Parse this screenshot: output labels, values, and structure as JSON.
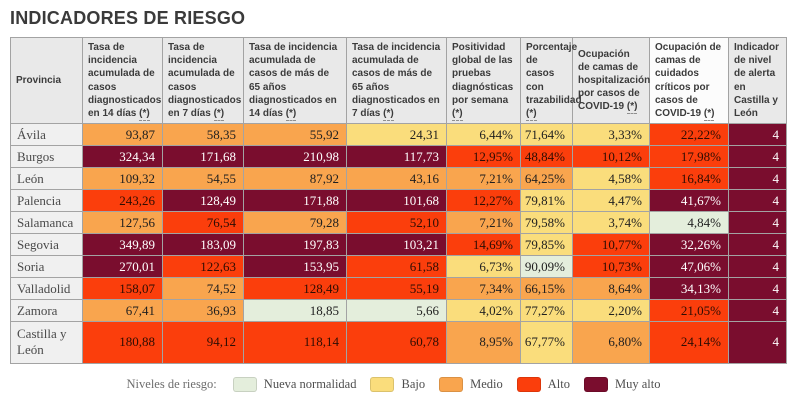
{
  "chart_data": {
    "type": "table",
    "title": "INDICADORES DE RIESGO",
    "province_header": "Provincia",
    "footnote_marker": "(*)",
    "legend_label": "Niveles de riesgo:",
    "columns": [
      {
        "label": "Tasa de incidencia acumulada de casos diagnosticados en 14 días",
        "asterisk": "(*)",
        "highlight": false
      },
      {
        "label": "Tasa de incidencia acumulada de casos diagnosticados en 7 días",
        "asterisk": "(*)",
        "highlight": false
      },
      {
        "label": "Tasa de incidencia acumulada de casos de más de 65 años diagnosticados en 14 días",
        "asterisk": "(*)",
        "highlight": false
      },
      {
        "label": "Tasa de incidencia acumulada de casos de más de 65 años diagnosticados en 7 días",
        "asterisk": "(*)",
        "highlight": false
      },
      {
        "label": "Positividad global de las pruebas diagnósticas por semana",
        "asterisk": "(*)",
        "highlight": false
      },
      {
        "label": "Porcentaje de casos con trazabilidad",
        "asterisk": "(*)",
        "highlight": false
      },
      {
        "label": "Ocupación de camas de hospitalización por casos de COVID-19",
        "asterisk": "(*)",
        "highlight": false
      },
      {
        "label": "Ocupación de camas de cuidados críticos por casos de COVID-19",
        "asterisk": "(*)",
        "highlight": true
      },
      {
        "label": "Indicador de nivel de alerta en Castilla y León",
        "asterisk": "",
        "highlight": false
      }
    ],
    "risk_levels": [
      {
        "id": "nueva",
        "label": "Nueva normalidad",
        "color": "#e4eedc",
        "text": "#1f1f1f"
      },
      {
        "id": "bajo",
        "label": "Bajo",
        "color": "#fadd7c",
        "text": "#1f1f1f"
      },
      {
        "id": "medio",
        "label": "Medio",
        "color": "#f9a54e",
        "text": "#1f1f1f"
      },
      {
        "id": "alto",
        "label": "Alto",
        "color": "#fb3e0c",
        "text": "#2e0d03"
      },
      {
        "id": "muy_alto",
        "label": "Muy alto",
        "color": "#7a0d2e",
        "text": "#ffffff"
      }
    ],
    "rows": [
      {
        "province": "Ávila",
        "cells": [
          {
            "value": "93,87",
            "level": "medio"
          },
          {
            "value": "58,35",
            "level": "medio"
          },
          {
            "value": "55,92",
            "level": "medio"
          },
          {
            "value": "24,31",
            "level": "bajo"
          },
          {
            "value": "6,44%",
            "level": "bajo"
          },
          {
            "value": "71,64%",
            "level": "bajo"
          },
          {
            "value": "3,33%",
            "level": "bajo"
          },
          {
            "value": "22,22%",
            "level": "alto"
          },
          {
            "value": "4",
            "level": "muy_alto"
          }
        ]
      },
      {
        "province": "Burgos",
        "cells": [
          {
            "value": "324,34",
            "level": "muy_alto"
          },
          {
            "value": "171,68",
            "level": "muy_alto"
          },
          {
            "value": "210,98",
            "level": "muy_alto"
          },
          {
            "value": "117,73",
            "level": "muy_alto"
          },
          {
            "value": "12,95%",
            "level": "alto"
          },
          {
            "value": "48,84%",
            "level": "alto"
          },
          {
            "value": "10,12%",
            "level": "alto"
          },
          {
            "value": "17,98%",
            "level": "alto"
          },
          {
            "value": "4",
            "level": "muy_alto"
          }
        ]
      },
      {
        "province": "León",
        "cells": [
          {
            "value": "109,32",
            "level": "medio"
          },
          {
            "value": "54,55",
            "level": "medio"
          },
          {
            "value": "87,92",
            "level": "medio"
          },
          {
            "value": "43,16",
            "level": "medio"
          },
          {
            "value": "7,21%",
            "level": "medio"
          },
          {
            "value": "64,25%",
            "level": "medio"
          },
          {
            "value": "4,58%",
            "level": "bajo"
          },
          {
            "value": "16,84%",
            "level": "alto"
          },
          {
            "value": "4",
            "level": "muy_alto"
          }
        ]
      },
      {
        "province": "Palencia",
        "cells": [
          {
            "value": "243,26",
            "level": "alto"
          },
          {
            "value": "128,49",
            "level": "muy_alto"
          },
          {
            "value": "171,88",
            "level": "muy_alto"
          },
          {
            "value": "101,68",
            "level": "muy_alto"
          },
          {
            "value": "12,27%",
            "level": "alto"
          },
          {
            "value": "79,81%",
            "level": "bajo"
          },
          {
            "value": "4,47%",
            "level": "bajo"
          },
          {
            "value": "41,67%",
            "level": "muy_alto"
          },
          {
            "value": "4",
            "level": "muy_alto"
          }
        ]
      },
      {
        "province": "Salamanca",
        "cells": [
          {
            "value": "127,56",
            "level": "medio"
          },
          {
            "value": "76,54",
            "level": "alto"
          },
          {
            "value": "79,28",
            "level": "medio"
          },
          {
            "value": "52,10",
            "level": "alto"
          },
          {
            "value": "7,21%",
            "level": "medio"
          },
          {
            "value": "79,58%",
            "level": "bajo"
          },
          {
            "value": "3,74%",
            "level": "bajo"
          },
          {
            "value": "4,84%",
            "level": "nueva"
          },
          {
            "value": "4",
            "level": "muy_alto"
          }
        ]
      },
      {
        "province": "Segovia",
        "cells": [
          {
            "value": "349,89",
            "level": "muy_alto"
          },
          {
            "value": "183,09",
            "level": "muy_alto"
          },
          {
            "value": "197,83",
            "level": "muy_alto"
          },
          {
            "value": "103,21",
            "level": "muy_alto"
          },
          {
            "value": "14,69%",
            "level": "alto"
          },
          {
            "value": "79,85%",
            "level": "bajo"
          },
          {
            "value": "10,77%",
            "level": "alto"
          },
          {
            "value": "32,26%",
            "level": "muy_alto"
          },
          {
            "value": "4",
            "level": "muy_alto"
          }
        ]
      },
      {
        "province": "Soria",
        "cells": [
          {
            "value": "270,01",
            "level": "muy_alto"
          },
          {
            "value": "122,63",
            "level": "alto"
          },
          {
            "value": "153,95",
            "level": "muy_alto"
          },
          {
            "value": "61,58",
            "level": "alto"
          },
          {
            "value": "6,73%",
            "level": "bajo"
          },
          {
            "value": "90,09%",
            "level": "nueva"
          },
          {
            "value": "10,73%",
            "level": "alto"
          },
          {
            "value": "47,06%",
            "level": "muy_alto"
          },
          {
            "value": "4",
            "level": "muy_alto"
          }
        ]
      },
      {
        "province": "Valladolid",
        "cells": [
          {
            "value": "158,07",
            "level": "alto"
          },
          {
            "value": "74,52",
            "level": "medio"
          },
          {
            "value": "128,49",
            "level": "alto"
          },
          {
            "value": "55,19",
            "level": "alto"
          },
          {
            "value": "7,34%",
            "level": "medio"
          },
          {
            "value": "66,15%",
            "level": "medio"
          },
          {
            "value": "8,64%",
            "level": "medio"
          },
          {
            "value": "34,13%",
            "level": "muy_alto"
          },
          {
            "value": "4",
            "level": "muy_alto"
          }
        ]
      },
      {
        "province": "Zamora",
        "cells": [
          {
            "value": "67,41",
            "level": "medio"
          },
          {
            "value": "36,93",
            "level": "medio"
          },
          {
            "value": "18,85",
            "level": "nueva"
          },
          {
            "value": "5,66",
            "level": "nueva"
          },
          {
            "value": "4,02%",
            "level": "bajo"
          },
          {
            "value": "77,27%",
            "level": "bajo"
          },
          {
            "value": "2,20%",
            "level": "bajo"
          },
          {
            "value": "21,05%",
            "level": "alto"
          },
          {
            "value": "4",
            "level": "muy_alto"
          }
        ]
      },
      {
        "province": "Castilla y León",
        "cells": [
          {
            "value": "180,88",
            "level": "alto"
          },
          {
            "value": "94,12",
            "level": "alto"
          },
          {
            "value": "118,14",
            "level": "alto"
          },
          {
            "value": "60,78",
            "level": "alto"
          },
          {
            "value": "8,95%",
            "level": "medio"
          },
          {
            "value": "67,77%",
            "level": "bajo"
          },
          {
            "value": "6,80%",
            "level": "medio"
          },
          {
            "value": "24,14%",
            "level": "alto"
          },
          {
            "value": "4",
            "level": "muy_alto"
          }
        ]
      }
    ]
  }
}
